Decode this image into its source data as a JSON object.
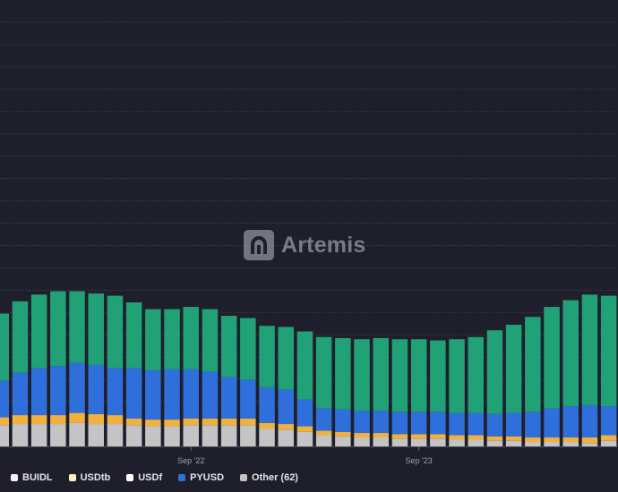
{
  "watermark": {
    "brand": "Artemis",
    "logo_icon": "artemis-logo-icon"
  },
  "legend": [
    {
      "name": "BUIDL",
      "color": "#f2f2f2"
    },
    {
      "name": "USDtb",
      "color": "#fff3c4"
    },
    {
      "name": "USDf",
      "color": "#ffffff"
    },
    {
      "name": "PYUSD",
      "color": "#2f6fdb"
    },
    {
      "name": "Other (62)",
      "color": "#c4c4c4"
    }
  ],
  "chart_data": {
    "type": "bar",
    "stacked": true,
    "grid": true,
    "legend_position": "bottom-left",
    "x_tick_labels": [
      {
        "label": "Sep '22",
        "index": 10
      },
      {
        "label": "Sep '23",
        "index": 22
      }
    ],
    "ylim": [
      0,
      20
    ],
    "stack_colors": {
      "Other": "#c4c4c4",
      "Orange": "#f0b13e",
      "Blue": "#2f6fdb",
      "Green": "#21a176"
    },
    "series": [
      {
        "key": "Other",
        "values": [
          0.95,
          1.0,
          1.0,
          1.0,
          1.05,
          1.0,
          1.0,
          0.95,
          0.9,
          0.9,
          0.95,
          0.95,
          0.95,
          0.95,
          0.8,
          0.75,
          0.65,
          0.5,
          0.45,
          0.4,
          0.4,
          0.35,
          0.35,
          0.35,
          0.3,
          0.3,
          0.25,
          0.25,
          0.2,
          0.2,
          0.2,
          0.15,
          0.25,
          0.2,
          0.15
        ]
      },
      {
        "key": "Orange",
        "values": [
          0.35,
          0.4,
          0.4,
          0.4,
          0.45,
          0.45,
          0.4,
          0.3,
          0.3,
          0.3,
          0.3,
          0.3,
          0.3,
          0.3,
          0.25,
          0.25,
          0.25,
          0.2,
          0.2,
          0.2,
          0.2,
          0.2,
          0.2,
          0.2,
          0.2,
          0.2,
          0.2,
          0.2,
          0.2,
          0.2,
          0.2,
          0.25,
          0.25,
          0.25,
          0.3
        ]
      },
      {
        "key": "Blue",
        "values": [
          1.65,
          1.9,
          2.1,
          2.2,
          2.25,
          2.2,
          2.1,
          2.25,
          2.2,
          2.25,
          2.2,
          2.1,
          1.85,
          1.75,
          1.6,
          1.55,
          1.2,
          1.0,
          1.0,
          1.0,
          1.0,
          1.0,
          1.0,
          1.0,
          1.0,
          1.0,
          1.0,
          1.05,
          1.15,
          1.3,
          1.4,
          1.45,
          1.3,
          1.35,
          1.4
        ]
      },
      {
        "key": "Green",
        "values": [
          3.0,
          3.2,
          3.3,
          3.35,
          3.2,
          3.2,
          3.25,
          2.95,
          2.75,
          2.7,
          2.8,
          2.8,
          2.75,
          2.75,
          2.75,
          2.8,
          3.05,
          3.2,
          3.2,
          3.2,
          3.25,
          3.25,
          3.25,
          3.2,
          3.3,
          3.4,
          3.75,
          3.95,
          4.25,
          4.55,
          4.75,
          4.95,
          4.95,
          4.95,
          4.95
        ]
      }
    ]
  }
}
